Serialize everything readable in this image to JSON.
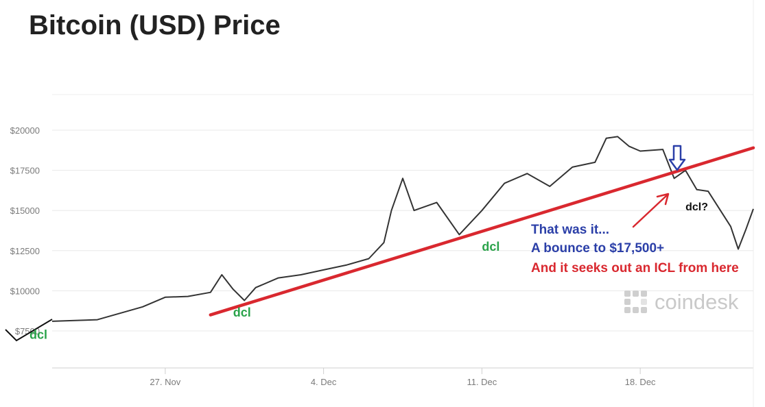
{
  "chart_data": {
    "type": "line",
    "title": "Bitcoin (USD) Price",
    "xlabel": "",
    "ylabel": "",
    "y_ticks": [
      "$7500",
      "$10000",
      "$12500",
      "$15000",
      "$17500",
      "$20000"
    ],
    "y_tick_values": [
      7500,
      10000,
      12500,
      15000,
      17500,
      20000
    ],
    "x_ticks": [
      "27. Nov",
      "4. Dec",
      "11. Dec",
      "18. Dec"
    ],
    "x_tick_values": [
      "2017-11-27",
      "2017-12-04",
      "2017-12-11",
      "2017-12-18"
    ],
    "xlim": [
      "2017-11-22",
      "2017-12-23"
    ],
    "ylim": [
      5000,
      22000
    ],
    "grid": "horizontal",
    "series": [
      {
        "color": "#333333",
        "points": [
          [
            "2017-11-22",
            8100
          ],
          [
            "2017-11-23",
            8150
          ],
          [
            "2017-11-24",
            8200
          ],
          [
            "2017-11-25",
            8600
          ],
          [
            "2017-11-26",
            9000
          ],
          [
            "2017-11-27",
            9600
          ],
          [
            "2017-11-28",
            9650
          ],
          [
            "2017-11-29",
            9900
          ],
          [
            "2017-11-29T12:00",
            11000
          ],
          [
            "2017-11-30",
            10100
          ],
          [
            "2017-11-30T12:00",
            9400
          ],
          [
            "2017-12-01",
            10200
          ],
          [
            "2017-12-02",
            10800
          ],
          [
            "2017-12-03",
            11000
          ],
          [
            "2017-12-04",
            11300
          ],
          [
            "2017-12-05",
            11600
          ],
          [
            "2017-12-06",
            12000
          ],
          [
            "2017-12-06T16:00",
            13000
          ],
          [
            "2017-12-07",
            15000
          ],
          [
            "2017-12-07T12:00",
            17000
          ],
          [
            "2017-12-08",
            15000
          ],
          [
            "2017-12-09",
            15500
          ],
          [
            "2017-12-10",
            13500
          ],
          [
            "2017-12-11",
            15000
          ],
          [
            "2017-12-12",
            16700
          ],
          [
            "2017-12-13",
            17300
          ],
          [
            "2017-12-14",
            16500
          ],
          [
            "2017-12-15",
            17700
          ],
          [
            "2017-12-16",
            18000
          ],
          [
            "2017-12-16T12:00",
            19500
          ],
          [
            "2017-12-17",
            19600
          ],
          [
            "2017-12-17T12:00",
            19000
          ],
          [
            "2017-12-18",
            18700
          ],
          [
            "2017-12-19",
            18800
          ],
          [
            "2017-12-19T12:00",
            17000
          ],
          [
            "2017-12-20",
            17500
          ],
          [
            "2017-12-20T12:00",
            16300
          ],
          [
            "2017-12-21",
            16200
          ],
          [
            "2017-12-22",
            14000
          ],
          [
            "2017-12-22T08:00",
            12600
          ],
          [
            "2017-12-22T16:00",
            13800
          ],
          [
            "2017-12-23",
            15100
          ]
        ]
      }
    ],
    "annotations": {
      "trendline": {
        "color": "#d9282f",
        "from": [
          "2017-11-29",
          8500
        ],
        "to": [
          "2017-12-23",
          18900
        ]
      },
      "dcl_labels": [
        {
          "text": "dcl",
          "at": [
            "2017-11-21",
            7000
          ]
        },
        {
          "text": "dcl",
          "at": [
            "2017-11-30",
            8400
          ]
        },
        {
          "text": "dcl",
          "at": [
            "2017-12-11",
            12500
          ]
        }
      ],
      "dcl_question": {
        "text": "dcl?",
        "at": [
          "2017-12-20",
          15000
        ]
      },
      "notes": [
        {
          "text": "That was it...",
          "color": "#2b3fa8"
        },
        {
          "text": "A bounce to $17,500+",
          "color": "#2b3fa8"
        },
        {
          "text": "And it seeks out an ICL from here",
          "color": "#d9282f"
        }
      ],
      "down_arrow_color": "#2b3fa8",
      "pointer_arrow_color": "#d9282f"
    },
    "watermark": "coindesk"
  }
}
